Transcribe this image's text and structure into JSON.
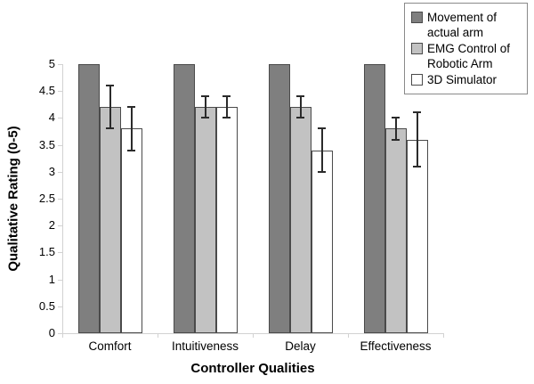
{
  "chart_data": {
    "type": "bar",
    "title": "",
    "xlabel": "Controller Qualities",
    "ylabel": "Qualitative Rating (0-5)",
    "categories": [
      "Comfort",
      "Intuitiveness",
      "Delay",
      "Effectiveness"
    ],
    "series": [
      {
        "name": "Movement of actual arm",
        "values": [
          5,
          5,
          5,
          5
        ],
        "errors": [
          0,
          0,
          0,
          0
        ],
        "color": "#7f7f7f",
        "border": "#4a4a4a"
      },
      {
        "name": "EMG Control of Robotic Arm",
        "values": [
          4.2,
          4.2,
          4.2,
          3.8
        ],
        "errors": [
          0.4,
          0.2,
          0.2,
          0.2
        ],
        "color": "#c2c2c2",
        "border": "#4a4a4a"
      },
      {
        "name": "3D Simulator",
        "values": [
          3.8,
          4.2,
          3.4,
          3.6
        ],
        "errors": [
          0.4,
          0.2,
          0.4,
          0.5
        ],
        "color": "#ffffff",
        "border": "#4a4a4a"
      }
    ],
    "ylim": [
      0,
      5
    ],
    "ytick_step": 0.5,
    "yticks": [
      "0",
      "0.5",
      "1",
      "1.5",
      "2",
      "2.5",
      "3",
      "3.5",
      "4",
      "4.5",
      "5"
    ],
    "grid": false,
    "legend_position": "top-right",
    "colors": {
      "axis": "#d2d2d2",
      "error_bar": "#2b2b2b",
      "legend_border": "#8a8a8a",
      "text": "#000000",
      "background": "#ffffff"
    }
  }
}
